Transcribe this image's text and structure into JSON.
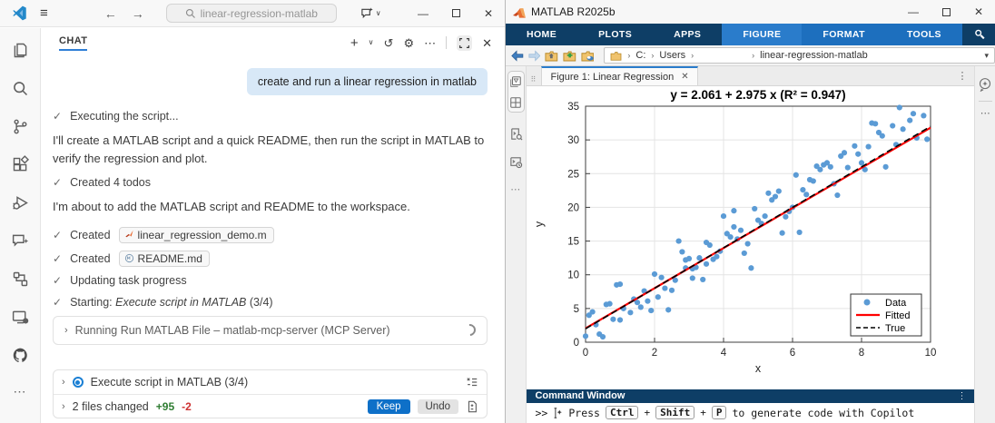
{
  "icons": {
    "hamburger": "≡",
    "back_arrow": "←",
    "forward_arrow": "→",
    "chevron_down": "∨",
    "plus": "+",
    "history": "↺",
    "gear": "⚙",
    "ellipsis_h": "⋯",
    "ellipsis_v": "⋮",
    "close": "✕",
    "minimize": "—",
    "check": "✓",
    "chevron_right": "›",
    "breadcrumb_sep": "›",
    "caret_down": "▾",
    "drag_handle": "⠿"
  },
  "vscode": {
    "titlebar": {
      "search_placeholder": "linear-regression-matlab"
    },
    "activity_bar": {
      "items": [
        "explorer",
        "search",
        "source-control",
        "extensions",
        "run-and-debug",
        "chat",
        "mcp-servers",
        "remote-explorer",
        "github",
        "more"
      ]
    },
    "chat": {
      "tab_label": "CHAT",
      "user_message": "create and run a linear regression in matlab",
      "step_executing": "Executing the script...",
      "para_intro": "I'll create a MATLAB script and a quick README, then run the script in MATLAB to verify the regression and plot.",
      "step_todos": "Created 4 todos",
      "para_add": "I'm about to add the MATLAB script and README to the workspace.",
      "created_label_1": "Created",
      "created_file_1": "linear_regression_demo.m",
      "created_label_2": "Created",
      "created_file_2": "README.md",
      "step_updating": "Updating task progress",
      "step_starting_prefix": "Starting:",
      "step_starting_task": "Execute script in MATLAB",
      "step_starting_count": "(3/4)",
      "running_label": "Running Run MATLAB File – matlab-mcp-server (MCP Server)",
      "todo_label": "Execute script in MATLAB (3/4)",
      "changes": {
        "summary": "2 files changed",
        "additions": "+95",
        "deletions": "-2",
        "keep": "Keep",
        "undo": "Undo"
      }
    }
  },
  "matlab": {
    "window_title": "MATLAB R2025b",
    "toolstrip": {
      "tabs_main": [
        "HOME",
        "PLOTS",
        "APPS"
      ],
      "tabs_contextual": [
        "FIGURE",
        "FORMAT",
        "TOOLS"
      ]
    },
    "breadcrumb": {
      "segments": [
        "C:",
        "Users",
        "",
        "linear-regression-matlab"
      ]
    },
    "figure_tab": "Figure 1: Linear Regression",
    "command_window": {
      "title": "Command Window",
      "prompt": ">>",
      "hint_press": "Press",
      "key_1": "Ctrl",
      "plus_1": "+",
      "key_2": "Shift",
      "plus_2": "+",
      "key_3": "P",
      "hint_rest": "to generate code with Copilot"
    }
  },
  "chart_data": {
    "type": "scatter",
    "title": "y = 2.061 + 2.975 x    (R² = 0.947)",
    "xlabel": "x",
    "ylabel": "y",
    "xlim": [
      0,
      10
    ],
    "ylim": [
      0,
      35
    ],
    "xticks": [
      0,
      2,
      4,
      6,
      8,
      10
    ],
    "yticks": [
      0,
      5,
      10,
      15,
      20,
      25,
      30,
      35
    ],
    "grid": true,
    "legend": {
      "position": "southeast"
    },
    "series": [
      {
        "name": "Data",
        "type": "scatter",
        "color": "#5b9bd5",
        "points": [
          [
            0.0,
            0.9
          ],
          [
            0.1,
            4.0
          ],
          [
            0.2,
            4.5
          ],
          [
            0.3,
            2.6
          ],
          [
            0.4,
            1.2
          ],
          [
            0.5,
            0.8
          ],
          [
            0.6,
            5.6
          ],
          [
            0.7,
            5.7
          ],
          [
            0.8,
            3.4
          ],
          [
            0.9,
            8.5
          ],
          [
            1.0,
            8.6
          ],
          [
            1.0,
            3.3
          ],
          [
            1.1,
            5.0
          ],
          [
            1.3,
            4.4
          ],
          [
            1.4,
            6.4
          ],
          [
            1.5,
            5.9
          ],
          [
            1.6,
            5.2
          ],
          [
            1.7,
            7.6
          ],
          [
            1.8,
            6.1
          ],
          [
            1.9,
            4.7
          ],
          [
            2.0,
            10.1
          ],
          [
            2.1,
            6.7
          ],
          [
            2.2,
            9.6
          ],
          [
            2.3,
            8.0
          ],
          [
            2.4,
            4.8
          ],
          [
            2.5,
            7.7
          ],
          [
            2.6,
            9.2
          ],
          [
            2.7,
            15.0
          ],
          [
            2.8,
            13.4
          ],
          [
            2.9,
            12.2
          ],
          [
            2.9,
            11.0
          ],
          [
            3.0,
            12.4
          ],
          [
            3.1,
            10.9
          ],
          [
            3.1,
            9.5
          ],
          [
            3.2,
            11.1
          ],
          [
            3.3,
            12.5
          ],
          [
            3.4,
            9.3
          ],
          [
            3.5,
            14.8
          ],
          [
            3.5,
            11.6
          ],
          [
            3.6,
            14.4
          ],
          [
            3.7,
            12.3
          ],
          [
            3.8,
            12.7
          ],
          [
            3.9,
            13.5
          ],
          [
            4.0,
            18.7
          ],
          [
            4.1,
            16.1
          ],
          [
            4.2,
            15.6
          ],
          [
            4.3,
            19.5
          ],
          [
            4.3,
            17.1
          ],
          [
            4.4,
            15.3
          ],
          [
            4.5,
            16.6
          ],
          [
            4.6,
            13.2
          ],
          [
            4.7,
            14.6
          ],
          [
            4.8,
            11.0
          ],
          [
            4.9,
            19.8
          ],
          [
            5.0,
            18.1
          ],
          [
            5.1,
            17.6
          ],
          [
            5.2,
            18.7
          ],
          [
            5.3,
            22.1
          ],
          [
            5.4,
            21.1
          ],
          [
            5.5,
            21.6
          ],
          [
            5.6,
            22.4
          ],
          [
            5.7,
            16.2
          ],
          [
            5.8,
            18.6
          ],
          [
            5.9,
            19.4
          ],
          [
            6.0,
            20.0
          ],
          [
            6.1,
            24.8
          ],
          [
            6.2,
            16.3
          ],
          [
            6.3,
            22.6
          ],
          [
            6.4,
            21.9
          ],
          [
            6.5,
            24.1
          ],
          [
            6.6,
            23.9
          ],
          [
            6.7,
            26.1
          ],
          [
            6.8,
            25.6
          ],
          [
            6.9,
            26.3
          ],
          [
            7.0,
            26.6
          ],
          [
            7.1,
            26.0
          ],
          [
            7.2,
            23.5
          ],
          [
            7.3,
            21.8
          ],
          [
            7.4,
            27.6
          ],
          [
            7.5,
            28.1
          ],
          [
            7.6,
            25.9
          ],
          [
            7.8,
            29.1
          ],
          [
            7.9,
            27.9
          ],
          [
            8.0,
            26.6
          ],
          [
            8.1,
            25.6
          ],
          [
            8.2,
            29.0
          ],
          [
            8.3,
            32.5
          ],
          [
            8.4,
            32.4
          ],
          [
            8.5,
            31.1
          ],
          [
            8.6,
            30.6
          ],
          [
            8.7,
            26.0
          ],
          [
            8.9,
            32.1
          ],
          [
            9.0,
            29.3
          ],
          [
            9.1,
            34.8
          ],
          [
            9.2,
            31.6
          ],
          [
            9.4,
            32.9
          ],
          [
            9.5,
            33.9
          ],
          [
            9.6,
            30.3
          ],
          [
            9.8,
            33.6
          ],
          [
            9.9,
            30.1
          ]
        ]
      },
      {
        "name": "Fitted",
        "type": "line",
        "color": "#ff0000",
        "width": 2.2,
        "fit": {
          "intercept": 2.061,
          "slope": 2.975
        }
      },
      {
        "name": "True",
        "type": "line",
        "color": "#000000",
        "width": 1.6,
        "dash": [
          7,
          4
        ],
        "fit": {
          "intercept": 2.0,
          "slope": 3.0
        }
      }
    ]
  },
  "colors": {
    "matlab_navy": "#0e3e66",
    "matlab_contextual_blue": "#1d6fbe",
    "vscode_accent": "#0e70c8",
    "scatter_blue": "#5b9bd5",
    "fitted_red": "#ff0000",
    "additions_green": "#2f7d32",
    "deletions_red": "#cd3131",
    "user_bubble": "#d8e8f7"
  }
}
